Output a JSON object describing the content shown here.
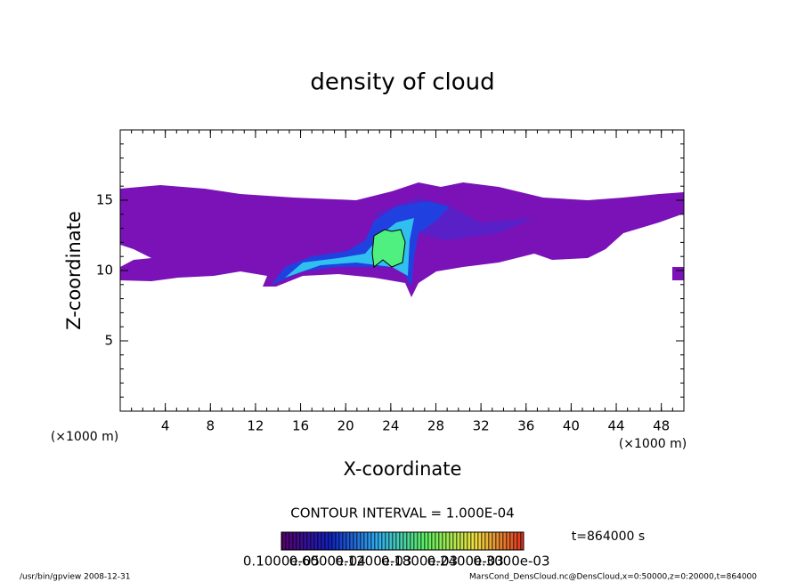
{
  "chart_data": {
    "type": "contour",
    "title": "density of cloud",
    "x_label": "X-coordinate",
    "y_label": "Z-coordinate",
    "x_unit": "(×1000 m)",
    "x_unit_right": "(×1000 m)",
    "xlim": [
      0,
      50
    ],
    "xticks": [
      4,
      8,
      12,
      16,
      20,
      24,
      28,
      32,
      36,
      40,
      44,
      48
    ],
    "ylim": [
      0,
      20
    ],
    "yticks": [
      5,
      10,
      15
    ],
    "contour_interval": "CONTOUR INTERVAL = 1.000E-04",
    "time_label": "t=864000 s",
    "colorbar_ticks": [
      "0.1000e-05",
      "0.6000e-04",
      "0.1200e-03",
      "0.1800e-03",
      "0.2400e-03",
      "0.3000e-03"
    ],
    "footer_left": "/usr/bin/gpview  2008-12-31",
    "footer_right": "MarsCond_DensCloud.nc@DensCloud,x=0:50000,z=0:20000,t=864000"
  }
}
